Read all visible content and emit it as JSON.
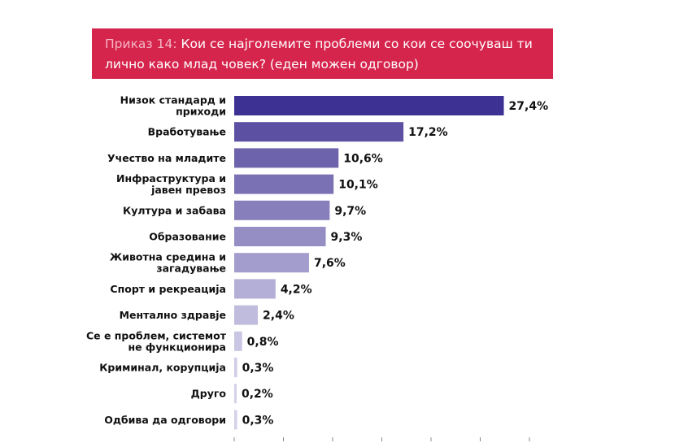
{
  "title": {
    "label": "Приказ 14:",
    "line1": "Кои се најголемите проблеми со кои се соочуваш ти",
    "line2": "лично како млад човек? (еден можен одговор)"
  },
  "chart_data": {
    "type": "bar",
    "orientation": "horizontal",
    "unit": "%",
    "categories": [
      [
        "Низок стандард и",
        "приходи"
      ],
      [
        "Вработување"
      ],
      [
        "Учество на младите"
      ],
      [
        "Инфраструктура и",
        "јавен превоз"
      ],
      [
        "Култура и забава"
      ],
      [
        "Образование"
      ],
      [
        "Животна средина и",
        "загадување"
      ],
      [
        "Спорт и рекреација"
      ],
      [
        "Ментално здравје"
      ],
      [
        "Се е проблем, системот",
        "не функционира"
      ],
      [
        "Криминал, корупција"
      ],
      [
        "Друго"
      ],
      [
        "Одбива да одговори"
      ]
    ],
    "values": [
      27.4,
      17.2,
      10.6,
      10.1,
      9.7,
      9.3,
      7.6,
      4.2,
      2.4,
      0.8,
      0.3,
      0.2,
      0.3
    ],
    "value_labels": [
      "27,4%",
      "17,2%",
      "10,6%",
      "10,1%",
      "9,7%",
      "9,3%",
      "7,6%",
      "4,2%",
      "2,4%",
      "0,8%",
      "0,3%",
      "0,2%",
      "0,3%"
    ],
    "bar_colors": [
      "#3d3193",
      "#5c50a3",
      "#6d63ad",
      "#7a71b4",
      "#877fbc",
      "#958ec5",
      "#a29dcd",
      "#b3afd6",
      "#c0bcdd",
      "#c9c6e3",
      "#d0cde7",
      "#d4d2e9",
      "#d4d2e9"
    ],
    "xlim": [
      0,
      30
    ],
    "grid": false
  }
}
